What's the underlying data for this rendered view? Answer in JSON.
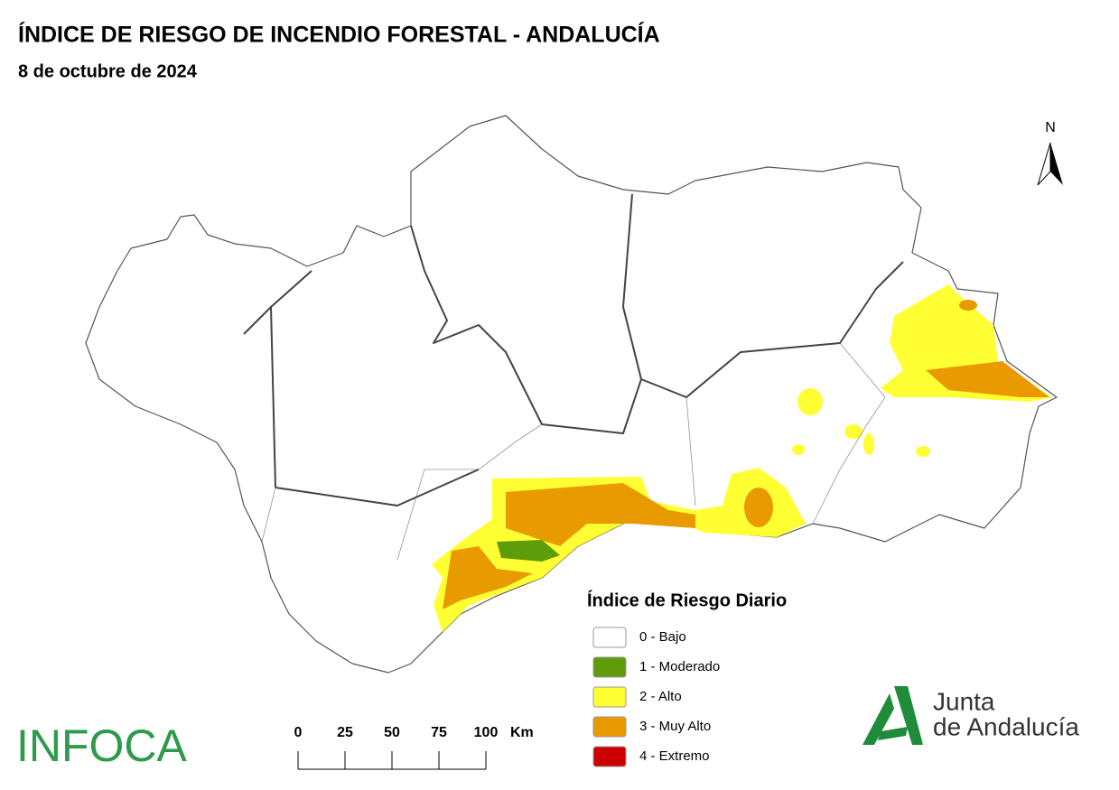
{
  "header": {
    "title": "ÍNDICE DE RIESGO DE INCENDIO FORESTAL - ANDALUCÍA",
    "subtitle": "8 de octubre de 2024"
  },
  "north": "N",
  "legend": {
    "title": "Índice de Riesgo Diario",
    "items": [
      {
        "label": "0 - Bajo",
        "color": "#ffffff"
      },
      {
        "label": "1 - Moderado",
        "color": "#5f9c0a"
      },
      {
        "label": "2 - Alto",
        "color": "#ffff33"
      },
      {
        "label": "3 - Muy Alto",
        "color": "#e89a00"
      },
      {
        "label": "4 - Extremo",
        "color": "#cc0000"
      }
    ]
  },
  "scale": {
    "ticks": [
      0,
      25,
      50,
      75,
      100
    ],
    "unit": "Km"
  },
  "logos": {
    "infoca": "INFOCA",
    "junta": "Junta",
    "andalucia": "de Andalucía"
  }
}
